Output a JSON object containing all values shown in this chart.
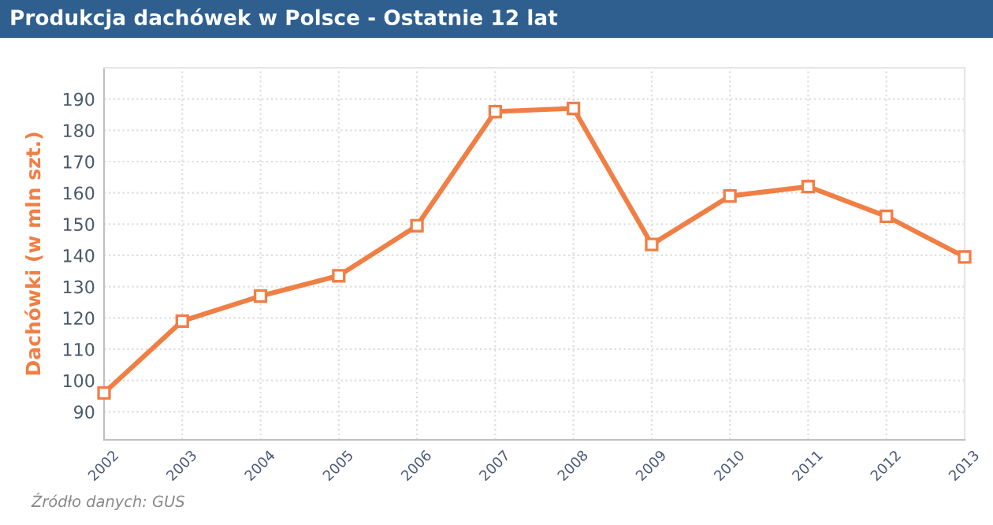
{
  "chart_data": {
    "type": "line",
    "title": "Produkcja dachówek w Polsce - Ostatnie 12 lat",
    "ylabel": "Dachówki (w mln szt.)",
    "categories": [
      "2002",
      "2003",
      "2004",
      "2005",
      "2006",
      "2007",
      "2008",
      "2009",
      "2010",
      "2011",
      "2012",
      "2013"
    ],
    "series": [
      {
        "color": "#f07f45",
        "values": [
          96,
          119,
          127,
          133.5,
          149.5,
          186,
          187,
          143.5,
          159,
          162,
          152.5,
          139.5
        ]
      }
    ],
    "ylim": [
      81,
      200
    ],
    "yticks": [
      90,
      100,
      110,
      120,
      130,
      140,
      150,
      160,
      170,
      180,
      190
    ],
    "grid": true,
    "marker": "square",
    "line_style": "solid",
    "annotations": [
      "Źródło danych: GUS"
    ]
  }
}
